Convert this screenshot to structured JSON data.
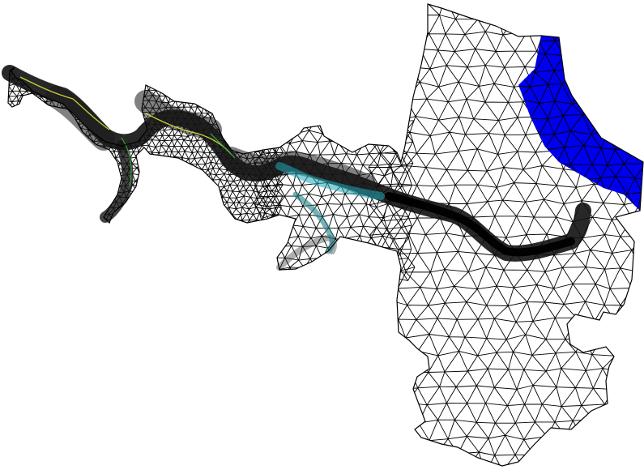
{
  "figure": {
    "kind": "unstructured triangular finite-element mesh",
    "visible_text": [],
    "colors": {
      "background": "#ffffff",
      "mesh_line": "#000000",
      "dense_mesh_fill": "#0f0f0f",
      "channel_accent_yellow": "#d8e03a",
      "channel_accent_green": "#3fae4a",
      "channel_accent_cyan": "#21a9b8",
      "channel_accent_teal": "#1f7f86",
      "boundary_region": "#0000ee"
    },
    "legend": "none",
    "axes": "none"
  }
}
